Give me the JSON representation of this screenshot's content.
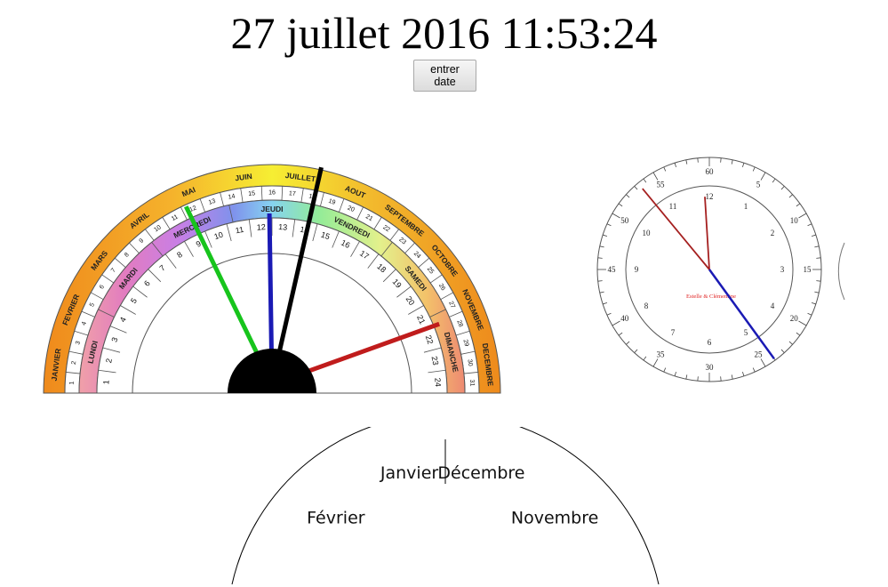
{
  "header": {
    "datetime": "27 juillet 2016 11:53:24"
  },
  "controls": {
    "enter_date_label_line1": "entrer",
    "enter_date_label_line2": "date"
  },
  "calendar": {
    "months": [
      "JANVIER",
      "FEVRIER",
      "MARS",
      "AVRIL",
      "MAI",
      "JUIN",
      "JUILLET",
      "AOUT",
      "SEPTEMBRE",
      "OCTOBRE",
      "NOVEMBRE",
      "DECEMBRE"
    ],
    "days": [
      "LUNDI",
      "MARDI",
      "MERCREDI",
      "JEUDI",
      "VENDREDI",
      "SAMEDI",
      "DIMANCHE"
    ],
    "day_of_month_count": 31,
    "hours_count": 24,
    "selected": {
      "month": "JUILLET",
      "day_of_month": 27,
      "weekday": "MERCREDI",
      "hour": 11,
      "minute": 53,
      "second": 24
    },
    "hand_colors": {
      "month": "#000000",
      "day": "#17c41c",
      "hour": "#1a1ab4",
      "minute": "#c01c1c"
    }
  },
  "clock": {
    "hour_numbers": [
      "12",
      "1",
      "2",
      "3",
      "4",
      "5",
      "6",
      "7",
      "8",
      "9",
      "10",
      "11"
    ],
    "minute_numbers": [
      "60",
      "5",
      "10",
      "15",
      "20",
      "25",
      "30",
      "35",
      "40",
      "45",
      "50",
      "55"
    ],
    "signature": "Estelle & Clémentine",
    "time": {
      "hour": 11,
      "minute": 53,
      "second": 24
    },
    "hand_colors": {
      "hour": "#a52020",
      "minute": "#a52020",
      "second": "#1a1ab4"
    }
  },
  "month_dial": {
    "labels": [
      {
        "name": "Janvier",
        "side": "left"
      },
      {
        "name": "Décembre",
        "side": "right"
      },
      {
        "name": "Février",
        "side": "left"
      },
      {
        "name": "Novembre",
        "side": "right"
      }
    ]
  }
}
